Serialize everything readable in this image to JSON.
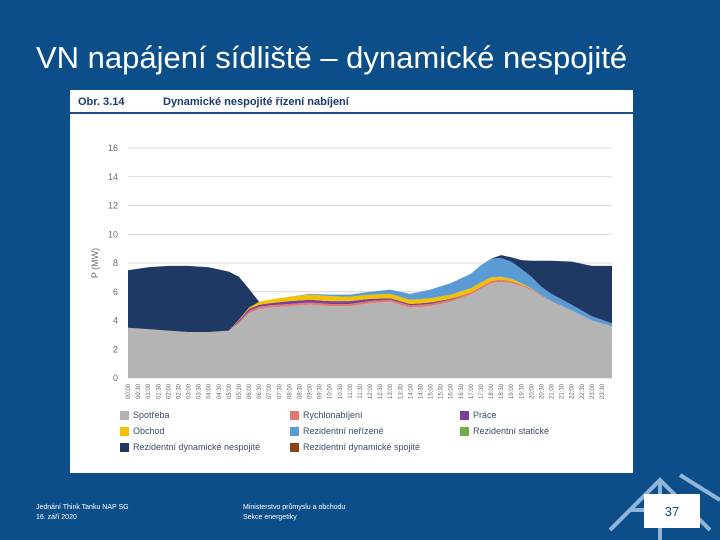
{
  "slide": {
    "title": "VN napájení sídliště – dynamické nespojité",
    "page_number": "37"
  },
  "footer": {
    "left_line1": "Jednání Think Tanku NAP SG",
    "left_line2": "16. září 2020",
    "center_line1": "Ministerstvo průmyslu a obchodu",
    "center_line2": "Sekce energetiky"
  },
  "figure": {
    "label": "Obr.  3.14",
    "title": "Dynamické nespojité řízení nabíjení"
  },
  "chart_data": {
    "type": "area",
    "stacked": true,
    "ylabel": "P (MW)",
    "ylim": [
      0,
      16
    ],
    "yticks": [
      0,
      2,
      4,
      6,
      8,
      10,
      12,
      14,
      16
    ],
    "grid": true,
    "legend_position": "bottom",
    "x_ticks": [
      "00:00",
      "00:30",
      "01:00",
      "01:30",
      "02:00",
      "02:30",
      "03:00",
      "03:30",
      "04:00",
      "04:30",
      "05:00",
      "05:30",
      "06:00",
      "06:30",
      "07:00",
      "07:30",
      "08:00",
      "08:30",
      "09:00",
      "09:30",
      "10:00",
      "10:30",
      "11:00",
      "11:30",
      "12:00",
      "12:30",
      "13:00",
      "13:30",
      "14:00",
      "14:30",
      "15:00",
      "15:30",
      "16:00",
      "16:30",
      "17:00",
      "17:30",
      "18:00",
      "18:30",
      "19:00",
      "19:30",
      "20:00",
      "20:30",
      "21:00",
      "21:30",
      "22:00",
      "22:30",
      "23:00",
      "23:30"
    ],
    "x_hours": [
      0,
      1,
      2,
      3,
      4,
      5,
      5.5,
      6,
      6.5,
      7,
      8,
      9,
      10,
      11,
      12,
      13,
      14,
      15,
      16,
      17,
      17.5,
      18,
      18.5,
      19,
      19.5,
      20,
      20.5,
      21,
      22,
      23,
      24
    ],
    "series": [
      {
        "name": "Spotřeba",
        "color": "#b4b4b4",
        "values": [
          3.5,
          3.4,
          3.3,
          3.2,
          3.2,
          3.3,
          3.8,
          4.5,
          4.8,
          4.9,
          5.0,
          5.1,
          5.0,
          5.0,
          5.2,
          5.3,
          4.9,
          5.0,
          5.3,
          5.8,
          6.2,
          6.6,
          6.7,
          6.6,
          6.4,
          6.1,
          5.7,
          5.3,
          4.7,
          4.0,
          3.6
        ]
      },
      {
        "name": "Rychlonabíjení",
        "color": "#e07a6e",
        "values": [
          0,
          0,
          0,
          0,
          0,
          0,
          0.1,
          0.15,
          0.15,
          0.15,
          0.15,
          0.15,
          0.15,
          0.15,
          0.15,
          0.15,
          0.15,
          0.15,
          0.15,
          0.15,
          0.15,
          0.15,
          0.15,
          0.15,
          0.1,
          0.1,
          0.05,
          0.05,
          0,
          0,
          0
        ]
      },
      {
        "name": "Práce",
        "color": "#7b3f9e",
        "values": [
          0,
          0,
          0,
          0,
          0,
          0,
          0.1,
          0.15,
          0.15,
          0.15,
          0.2,
          0.2,
          0.2,
          0.2,
          0.15,
          0.1,
          0.1,
          0.1,
          0.05,
          0,
          0,
          0,
          0,
          0,
          0,
          0,
          0,
          0,
          0,
          0,
          0
        ]
      },
      {
        "name": "Obchod",
        "color": "#f2c200",
        "values": [
          0,
          0,
          0,
          0,
          0,
          0,
          0.05,
          0.1,
          0.2,
          0.25,
          0.3,
          0.35,
          0.35,
          0.3,
          0.3,
          0.3,
          0.3,
          0.3,
          0.3,
          0.3,
          0.3,
          0.25,
          0.2,
          0.15,
          0.1,
          0.05,
          0,
          0,
          0,
          0,
          0
        ]
      },
      {
        "name": "Rezidentní neřízené",
        "color": "#5b9bd5",
        "values": [
          0,
          0,
          0,
          0,
          0,
          0,
          0,
          0,
          0,
          0,
          0,
          0.05,
          0.1,
          0.15,
          0.2,
          0.3,
          0.4,
          0.6,
          0.8,
          1.0,
          1.2,
          1.3,
          1.3,
          1.2,
          1.0,
          0.8,
          0.6,
          0.5,
          0.4,
          0.3,
          0.2
        ]
      },
      {
        "name": "Rezidentní statické",
        "color": "#70ad47",
        "values": [
          0,
          0,
          0,
          0,
          0,
          0,
          0,
          0,
          0,
          0,
          0,
          0,
          0,
          0,
          0,
          0,
          0,
          0,
          0,
          0,
          0,
          0,
          0,
          0,
          0,
          0,
          0,
          0,
          0,
          0,
          0
        ]
      },
      {
        "name": "Rezidentní dynamické nespojité",
        "color": "#1f3864",
        "values": [
          4.0,
          4.3,
          4.5,
          4.6,
          4.5,
          4.1,
          3.0,
          1.3,
          0,
          0,
          0,
          0,
          0,
          0,
          0,
          0,
          0,
          0,
          0,
          0,
          0,
          0,
          0.2,
          0.3,
          0.6,
          1.1,
          1.8,
          2.3,
          3.0,
          3.5,
          4.0
        ]
      },
      {
        "name": "Rezidentní dynamické spojité",
        "color": "#8b4513",
        "values": [
          0,
          0,
          0,
          0,
          0,
          0,
          0,
          0,
          0,
          0,
          0,
          0,
          0,
          0,
          0,
          0,
          0,
          0,
          0,
          0,
          0,
          0,
          0,
          0,
          0,
          0,
          0,
          0,
          0,
          0,
          0
        ]
      }
    ]
  }
}
